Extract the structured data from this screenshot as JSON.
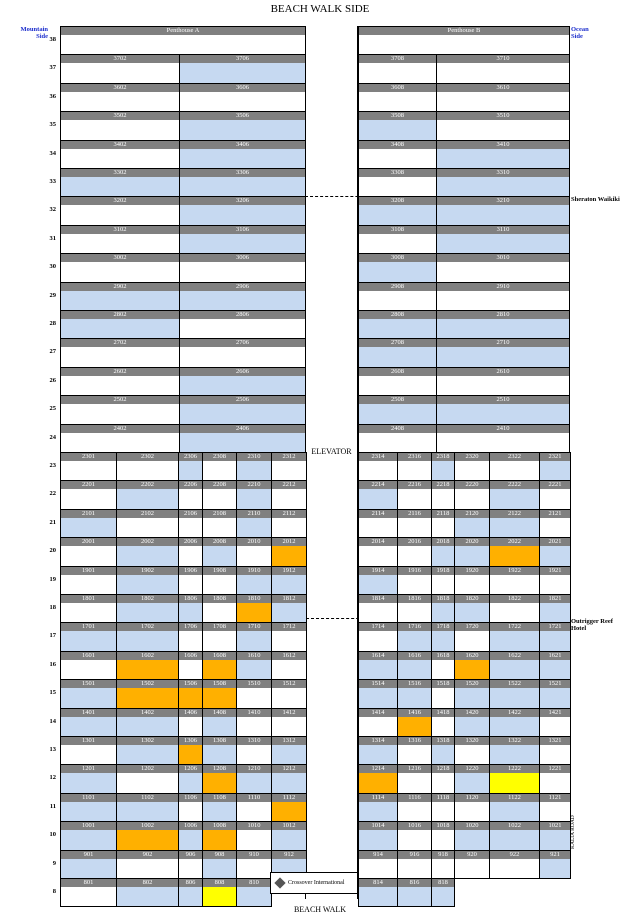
{
  "header": {
    "title": "BEACH WALK SIDE",
    "mountain_side": "Mountain Side",
    "ocean_side": "Ocean Side",
    "bottom": "BEACH WALK",
    "elevator": "ELEVATOR",
    "neighbor_top": "Sheraton Waikiki",
    "neighbor_mid": "Outrigger Reef Hotel",
    "street": "KALIA ROAD",
    "logo": "Crossover International"
  },
  "legend_colors": {
    "b": "#c6d9f1",
    "o": "#ffb000",
    "y": "#ffff00",
    "w": "#ffffff"
  },
  "tower_floors": [
    {
      "floor": "38",
      "left": [
        {
          "unit": "Penthouse A",
          "s": "w"
        }
      ],
      "right": [
        {
          "unit": "Penthouse B",
          "s": "w"
        }
      ]
    },
    {
      "floor": "37",
      "left": [
        {
          "unit": "3702",
          "s": "w"
        },
        {
          "unit": "3706",
          "s": "b"
        }
      ],
      "right": [
        {
          "unit": "3708",
          "s": "w"
        },
        {
          "unit": "3710",
          "s": "w"
        }
      ]
    },
    {
      "floor": "36",
      "left": [
        {
          "unit": "3602",
          "s": "w"
        },
        {
          "unit": "3606",
          "s": "w"
        }
      ],
      "right": [
        {
          "unit": "3608",
          "s": "w"
        },
        {
          "unit": "3610",
          "s": "w"
        }
      ]
    },
    {
      "floor": "35",
      "left": [
        {
          "unit": "3502",
          "s": "w"
        },
        {
          "unit": "3506",
          "s": "b"
        }
      ],
      "right": [
        {
          "unit": "3508",
          "s": "b"
        },
        {
          "unit": "3510",
          "s": "w"
        }
      ]
    },
    {
      "floor": "34",
      "left": [
        {
          "unit": "3402",
          "s": "w"
        },
        {
          "unit": "3406",
          "s": "b"
        }
      ],
      "right": [
        {
          "unit": "3408",
          "s": "w"
        },
        {
          "unit": "3410",
          "s": "b"
        }
      ]
    },
    {
      "floor": "33",
      "left": [
        {
          "unit": "3302",
          "s": "b"
        },
        {
          "unit": "3306",
          "s": "b"
        }
      ],
      "right": [
        {
          "unit": "3308",
          "s": "w"
        },
        {
          "unit": "3310",
          "s": "b"
        }
      ]
    },
    {
      "floor": "32",
      "left": [
        {
          "unit": "3202",
          "s": "w"
        },
        {
          "unit": "3206",
          "s": "b"
        }
      ],
      "right": [
        {
          "unit": "3208",
          "s": "b"
        },
        {
          "unit": "3210",
          "s": "b"
        }
      ]
    },
    {
      "floor": "31",
      "left": [
        {
          "unit": "3102",
          "s": "w"
        },
        {
          "unit": "3106",
          "s": "b"
        }
      ],
      "right": [
        {
          "unit": "3108",
          "s": "w"
        },
        {
          "unit": "3110",
          "s": "b"
        }
      ]
    },
    {
      "floor": "30",
      "left": [
        {
          "unit": "3002",
          "s": "w"
        },
        {
          "unit": "3006",
          "s": "w"
        }
      ],
      "right": [
        {
          "unit": "3008",
          "s": "b"
        },
        {
          "unit": "3010",
          "s": "w"
        }
      ]
    },
    {
      "floor": "29",
      "left": [
        {
          "unit": "2902",
          "s": "b"
        },
        {
          "unit": "2906",
          "s": "b"
        }
      ],
      "right": [
        {
          "unit": "2908",
          "s": "w"
        },
        {
          "unit": "2910",
          "s": "w"
        }
      ]
    },
    {
      "floor": "28",
      "left": [
        {
          "unit": "2802",
          "s": "b"
        },
        {
          "unit": "2806",
          "s": "w"
        }
      ],
      "right": [
        {
          "unit": "2808",
          "s": "b"
        },
        {
          "unit": "2810",
          "s": "b"
        }
      ]
    },
    {
      "floor": "27",
      "left": [
        {
          "unit": "2702",
          "s": "w"
        },
        {
          "unit": "2706",
          "s": "w"
        }
      ],
      "right": [
        {
          "unit": "2708",
          "s": "b"
        },
        {
          "unit": "2710",
          "s": "b"
        }
      ]
    },
    {
      "floor": "26",
      "left": [
        {
          "unit": "2602",
          "s": "w"
        },
        {
          "unit": "2606",
          "s": "b"
        }
      ],
      "right": [
        {
          "unit": "2608",
          "s": "w"
        },
        {
          "unit": "2610",
          "s": "w"
        }
      ]
    },
    {
      "floor": "25",
      "left": [
        {
          "unit": "2502",
          "s": "w"
        },
        {
          "unit": "2506",
          "s": "b"
        }
      ],
      "right": [
        {
          "unit": "2508",
          "s": "b"
        },
        {
          "unit": "2510",
          "s": "b"
        }
      ]
    },
    {
      "floor": "24",
      "left": [
        {
          "unit": "2402",
          "s": "w"
        },
        {
          "unit": "2406",
          "s": "b"
        }
      ],
      "right": [
        {
          "unit": "2408",
          "s": "w"
        },
        {
          "unit": "2410",
          "s": "w"
        }
      ]
    }
  ],
  "low_floors": [
    {
      "floor": "23",
      "left": [
        {
          "unit": "2301",
          "s": "w"
        },
        {
          "unit": "2302",
          "s": "w"
        },
        {
          "unit": "2306",
          "s": "b"
        },
        {
          "unit": "2308",
          "s": "w"
        },
        {
          "unit": "2310",
          "s": "b"
        },
        {
          "unit": "2312",
          "s": "w"
        }
      ],
      "right": [
        {
          "unit": "2314",
          "s": "w"
        },
        {
          "unit": "2316",
          "s": "w"
        },
        {
          "unit": "2318",
          "s": "b"
        },
        {
          "unit": "2320",
          "s": "w"
        },
        {
          "unit": "2322",
          "s": "w"
        },
        {
          "unit": "2321",
          "s": "b"
        }
      ]
    },
    {
      "floor": "22",
      "left": [
        {
          "unit": "2201",
          "s": "w"
        },
        {
          "unit": "2202",
          "s": "b"
        },
        {
          "unit": "2206",
          "s": "w"
        },
        {
          "unit": "2208",
          "s": "w"
        },
        {
          "unit": "2210",
          "s": "b"
        },
        {
          "unit": "2212",
          "s": "w"
        }
      ],
      "right": [
        {
          "unit": "2214",
          "s": "b"
        },
        {
          "unit": "2216",
          "s": "w"
        },
        {
          "unit": "2218",
          "s": "w"
        },
        {
          "unit": "2220",
          "s": "w"
        },
        {
          "unit": "2222",
          "s": "b"
        },
        {
          "unit": "2221",
          "s": "w"
        }
      ]
    },
    {
      "floor": "21",
      "left": [
        {
          "unit": "2101",
          "s": "b"
        },
        {
          "unit": "2102",
          "s": "w"
        },
        {
          "unit": "2106",
          "s": "w"
        },
        {
          "unit": "2108",
          "s": "w"
        },
        {
          "unit": "2110",
          "s": "b"
        },
        {
          "unit": "2112",
          "s": "w"
        }
      ],
      "right": [
        {
          "unit": "2114",
          "s": "w"
        },
        {
          "unit": "2116",
          "s": "w"
        },
        {
          "unit": "2118",
          "s": "w"
        },
        {
          "unit": "2120",
          "s": "b"
        },
        {
          "unit": "2122",
          "s": "b"
        },
        {
          "unit": "2121",
          "s": "w"
        }
      ]
    },
    {
      "floor": "20",
      "left": [
        {
          "unit": "2001",
          "s": "w"
        },
        {
          "unit": "2002",
          "s": "b"
        },
        {
          "unit": "2006",
          "s": "w"
        },
        {
          "unit": "2008",
          "s": "b"
        },
        {
          "unit": "2010",
          "s": "w"
        },
        {
          "unit": "2012",
          "s": "o"
        }
      ],
      "right": [
        {
          "unit": "2014",
          "s": "w"
        },
        {
          "unit": "2016",
          "s": "w"
        },
        {
          "unit": "2018",
          "s": "b"
        },
        {
          "unit": "2020",
          "s": "b"
        },
        {
          "unit": "2022",
          "s": "o"
        },
        {
          "unit": "2021",
          "s": "b"
        }
      ]
    },
    {
      "floor": "19",
      "left": [
        {
          "unit": "1901",
          "s": "w"
        },
        {
          "unit": "1902",
          "s": "b"
        },
        {
          "unit": "1906",
          "s": "w"
        },
        {
          "unit": "1908",
          "s": "w"
        },
        {
          "unit": "1910",
          "s": "b"
        },
        {
          "unit": "1912",
          "s": "b"
        }
      ],
      "right": [
        {
          "unit": "1914",
          "s": "b"
        },
        {
          "unit": "1916",
          "s": "w"
        },
        {
          "unit": "1918",
          "s": "w"
        },
        {
          "unit": "1920",
          "s": "w"
        },
        {
          "unit": "1922",
          "s": "w"
        },
        {
          "unit": "1921",
          "s": "w"
        }
      ]
    },
    {
      "floor": "18",
      "left": [
        {
          "unit": "1801",
          "s": "w"
        },
        {
          "unit": "1802",
          "s": "b"
        },
        {
          "unit": "1806",
          "s": "b"
        },
        {
          "unit": "1808",
          "s": "w"
        },
        {
          "unit": "1810",
          "s": "o"
        },
        {
          "unit": "1812",
          "s": "b"
        }
      ],
      "right": [
        {
          "unit": "1814",
          "s": "w"
        },
        {
          "unit": "1816",
          "s": "w"
        },
        {
          "unit": "1818",
          "s": "b"
        },
        {
          "unit": "1820",
          "s": "b"
        },
        {
          "unit": "1822",
          "s": "w"
        },
        {
          "unit": "1821",
          "s": "b"
        }
      ]
    },
    {
      "floor": "17",
      "left": [
        {
          "unit": "1701",
          "s": "b"
        },
        {
          "unit": "1702",
          "s": "b"
        },
        {
          "unit": "1706",
          "s": "w"
        },
        {
          "unit": "1708",
          "s": "w"
        },
        {
          "unit": "1710",
          "s": "b"
        },
        {
          "unit": "1712",
          "s": "w"
        }
      ],
      "right": [
        {
          "unit": "1714",
          "s": "w"
        },
        {
          "unit": "1716",
          "s": "b"
        },
        {
          "unit": "1718",
          "s": "b"
        },
        {
          "unit": "1720",
          "s": "w"
        },
        {
          "unit": "1722",
          "s": "b"
        },
        {
          "unit": "1721",
          "s": "b"
        }
      ]
    },
    {
      "floor": "16",
      "left": [
        {
          "unit": "1601",
          "s": "w"
        },
        {
          "unit": "1602",
          "s": "o"
        },
        {
          "unit": "1606",
          "s": "w"
        },
        {
          "unit": "1608",
          "s": "o"
        },
        {
          "unit": "1610",
          "s": "b"
        },
        {
          "unit": "1612",
          "s": "w"
        }
      ],
      "right": [
        {
          "unit": "1614",
          "s": "b"
        },
        {
          "unit": "1616",
          "s": "b"
        },
        {
          "unit": "1618",
          "s": "w"
        },
        {
          "unit": "1620",
          "s": "o"
        },
        {
          "unit": "1622",
          "s": "b"
        },
        {
          "unit": "1621",
          "s": "b"
        }
      ]
    },
    {
      "floor": "15",
      "left": [
        {
          "unit": "1501",
          "s": "b"
        },
        {
          "unit": "1502",
          "s": "o"
        },
        {
          "unit": "1506",
          "s": "o"
        },
        {
          "unit": "1508",
          "s": "o"
        },
        {
          "unit": "1510",
          "s": "w"
        },
        {
          "unit": "1512",
          "s": "w"
        }
      ],
      "right": [
        {
          "unit": "1514",
          "s": "b"
        },
        {
          "unit": "1516",
          "s": "b"
        },
        {
          "unit": "1518",
          "s": "w"
        },
        {
          "unit": "1520",
          "s": "b"
        },
        {
          "unit": "1522",
          "s": "b"
        },
        {
          "unit": "1521",
          "s": "b"
        }
      ]
    },
    {
      "floor": "14",
      "left": [
        {
          "unit": "1401",
          "s": "b"
        },
        {
          "unit": "1402",
          "s": "b"
        },
        {
          "unit": "1406",
          "s": "w"
        },
        {
          "unit": "1408",
          "s": "b"
        },
        {
          "unit": "1410",
          "s": "w"
        },
        {
          "unit": "1412",
          "s": "w"
        }
      ],
      "right": [
        {
          "unit": "1414",
          "s": "w"
        },
        {
          "unit": "1416",
          "s": "o"
        },
        {
          "unit": "1418",
          "s": "w"
        },
        {
          "unit": "1420",
          "s": "b"
        },
        {
          "unit": "1422",
          "s": "b"
        },
        {
          "unit": "1421",
          "s": "w"
        }
      ]
    },
    {
      "floor": "13",
      "left": [
        {
          "unit": "1301",
          "s": "w"
        },
        {
          "unit": "1302",
          "s": "b"
        },
        {
          "unit": "1306",
          "s": "o"
        },
        {
          "unit": "1308",
          "s": "b"
        },
        {
          "unit": "1310",
          "s": "w"
        },
        {
          "unit": "1312",
          "s": "b"
        }
      ],
      "right": [
        {
          "unit": "1314",
          "s": "b"
        },
        {
          "unit": "1316",
          "s": "w"
        },
        {
          "unit": "1318",
          "s": "b"
        },
        {
          "unit": "1320",
          "s": "w"
        },
        {
          "unit": "1322",
          "s": "b"
        },
        {
          "unit": "1321",
          "s": "w"
        }
      ]
    },
    {
      "floor": "12",
      "left": [
        {
          "unit": "1201",
          "s": "b"
        },
        {
          "unit": "1202",
          "s": "w"
        },
        {
          "unit": "1206",
          "s": "b"
        },
        {
          "unit": "1208",
          "s": "o"
        },
        {
          "unit": "1210",
          "s": "b"
        },
        {
          "unit": "1212",
          "s": "b"
        }
      ],
      "right": [
        {
          "unit": "1214",
          "s": "o"
        },
        {
          "unit": "1216",
          "s": "w"
        },
        {
          "unit": "1218",
          "s": "w"
        },
        {
          "unit": "1220",
          "s": "b"
        },
        {
          "unit": "1222",
          "s": "y"
        },
        {
          "unit": "1221",
          "s": "w"
        }
      ]
    },
    {
      "floor": "11",
      "left": [
        {
          "unit": "1101",
          "s": "b"
        },
        {
          "unit": "1102",
          "s": "b"
        },
        {
          "unit": "1106",
          "s": "w"
        },
        {
          "unit": "1108",
          "s": "b"
        },
        {
          "unit": "1110",
          "s": "w"
        },
        {
          "unit": "1112",
          "s": "o"
        }
      ],
      "right": [
        {
          "unit": "1114",
          "s": "b"
        },
        {
          "unit": "1116",
          "s": "w"
        },
        {
          "unit": "1118",
          "s": "w"
        },
        {
          "unit": "1120",
          "s": "w"
        },
        {
          "unit": "1122",
          "s": "b"
        },
        {
          "unit": "1121",
          "s": "w"
        }
      ]
    },
    {
      "floor": "10",
      "left": [
        {
          "unit": "1001",
          "s": "b"
        },
        {
          "unit": "1002",
          "s": "o"
        },
        {
          "unit": "1006",
          "s": "b"
        },
        {
          "unit": "1008",
          "s": "o"
        },
        {
          "unit": "1010",
          "s": "w"
        },
        {
          "unit": "1012",
          "s": "b"
        }
      ],
      "right": [
        {
          "unit": "1014",
          "s": "b"
        },
        {
          "unit": "1016",
          "s": "w"
        },
        {
          "unit": "1018",
          "s": "w"
        },
        {
          "unit": "1020",
          "s": "b"
        },
        {
          "unit": "1022",
          "s": "b"
        },
        {
          "unit": "1021",
          "s": "b"
        }
      ]
    },
    {
      "floor": "9",
      "left": [
        {
          "unit": "901",
          "s": "b"
        },
        {
          "unit": "902",
          "s": "w"
        },
        {
          "unit": "906",
          "s": "w"
        },
        {
          "unit": "908",
          "s": "b"
        },
        {
          "unit": "910",
          "s": "w"
        },
        {
          "unit": "912",
          "s": "b"
        }
      ],
      "right": [
        {
          "unit": "914",
          "s": "w"
        },
        {
          "unit": "916",
          "s": "w"
        },
        {
          "unit": "918",
          "s": "w"
        },
        {
          "unit": "920",
          "s": "w"
        },
        {
          "unit": "922",
          "s": "w"
        },
        {
          "unit": "921",
          "s": "b"
        }
      ]
    },
    {
      "floor": "8",
      "left": [
        {
          "unit": "801",
          "s": "w"
        },
        {
          "unit": "802",
          "s": "b"
        },
        {
          "unit": "806",
          "s": "b"
        },
        {
          "unit": "808",
          "s": "y"
        },
        {
          "unit": "810",
          "s": "b"
        }
      ],
      "right": [
        {
          "unit": "814",
          "s": "b"
        },
        {
          "unit": "816",
          "s": "b"
        },
        {
          "unit": "818",
          "s": "b"
        }
      ]
    }
  ]
}
